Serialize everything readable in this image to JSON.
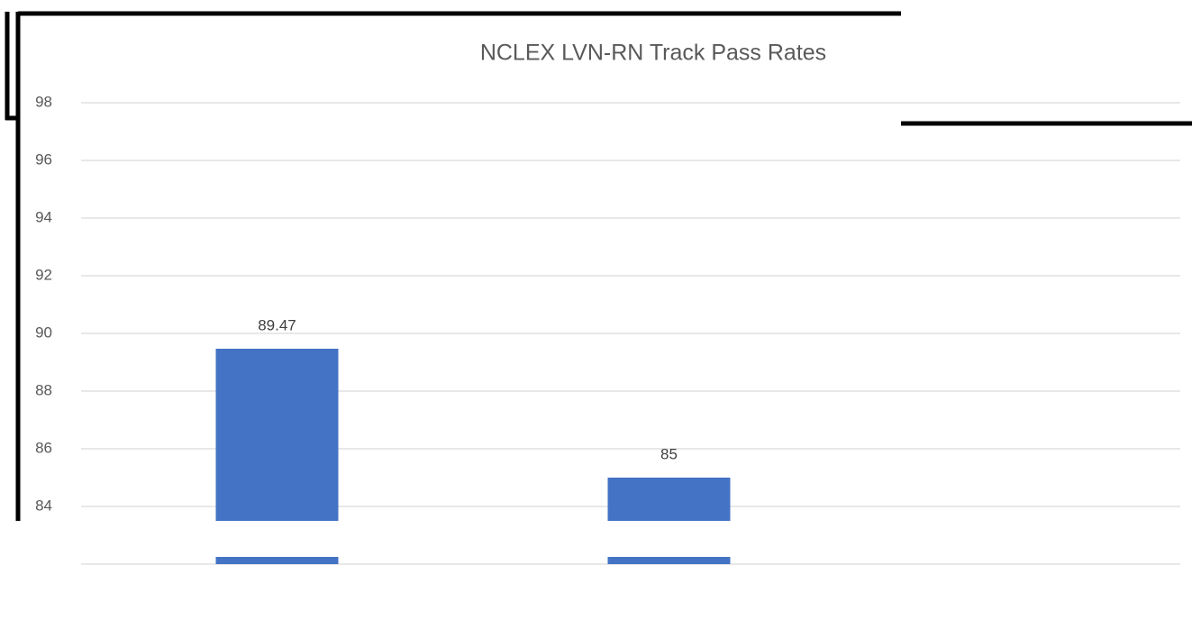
{
  "chart_data": {
    "type": "bar",
    "title": "NCLEX LVN-RN Track Pass Rates",
    "categories": [
      null,
      null
    ],
    "values": [
      89.47,
      85
    ],
    "color": "#4472c4",
    "ylim": [
      82,
      98
    ],
    "yticks": [
      84,
      86,
      88,
      90,
      92,
      94,
      96,
      98
    ],
    "grid": true
  }
}
